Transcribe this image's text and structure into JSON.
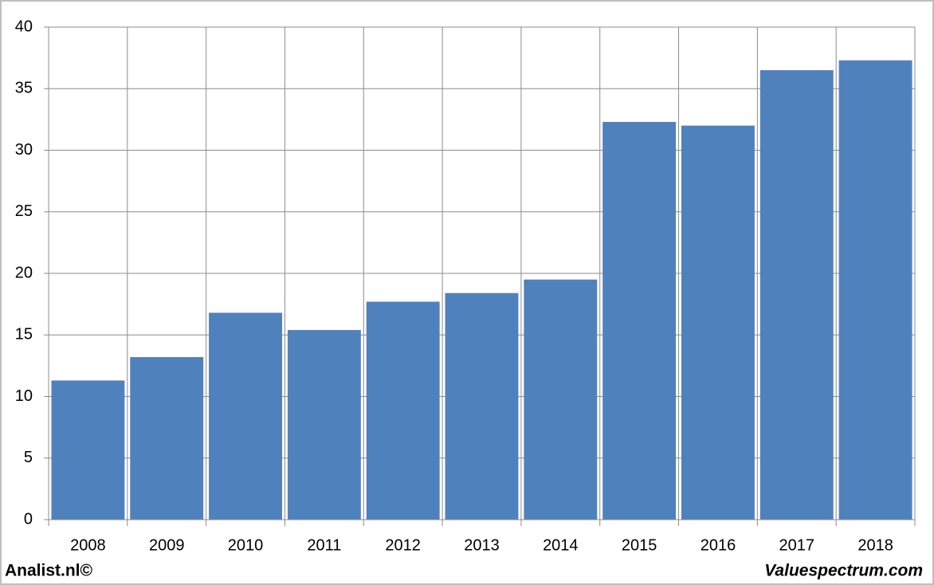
{
  "chart_data": {
    "type": "bar",
    "categories": [
      "2008",
      "2009",
      "2010",
      "2011",
      "2012",
      "2013",
      "2014",
      "2015",
      "2016",
      "2017",
      "2018"
    ],
    "values": [
      11.3,
      13.2,
      16.8,
      15.4,
      17.7,
      18.4,
      19.5,
      32.3,
      32.0,
      36.5,
      37.3
    ],
    "color": "#4f81bd",
    "ylim": [
      0,
      40
    ],
    "yticks": [
      0,
      5,
      10,
      15,
      20,
      25,
      30,
      35,
      40
    ],
    "grid": true
  },
  "footer": {
    "left": "Analist.nl©",
    "right": "Valuespectrum.com"
  }
}
